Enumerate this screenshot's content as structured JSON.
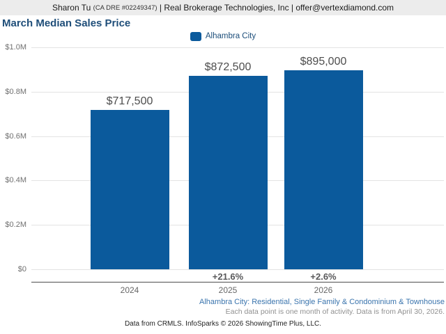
{
  "header": {
    "agent_name": "Sharon Tu",
    "license": "(CA DRE #02249347)",
    "rest": "| Real Brokerage Technologies, Inc | offer@vertexdiamond.com"
  },
  "title": "March Median Sales Price",
  "legend": {
    "label": "Alhambra City",
    "color": "#0b5a9c"
  },
  "chart_data": {
    "type": "bar",
    "title": "March Median Sales Price",
    "series": [
      {
        "name": "Alhambra City",
        "values": [
          717500,
          872500,
          895000
        ]
      }
    ],
    "categories": [
      "2024",
      "2025",
      "2026"
    ],
    "value_labels": [
      "$717,500",
      "$872,500",
      "$895,000"
    ],
    "pct_change_labels": [
      "",
      "+21.6%",
      "+2.6%"
    ],
    "y_ticks": [
      "$1.0M",
      "$0.8M",
      "$0.6M",
      "$0.4M",
      "$0.2M",
      "$0"
    ],
    "y_tick_values": [
      1000000,
      800000,
      600000,
      400000,
      200000,
      0
    ],
    "ylim": [
      0,
      1000000
    ],
    "xlabel": "",
    "ylabel": "",
    "grid": true,
    "legend_position": "top",
    "bar_color": "#0b5a9c"
  },
  "footnotes": {
    "series_description": "Alhambra City: Residential, Single Family & Condominium & Townhouse",
    "data_note": "Each data point is one month of activity. Data is from April 30, 2026.",
    "attribution": "Data from CRMLS. InfoSparks © 2026 ShowingTime Plus, LLC."
  }
}
